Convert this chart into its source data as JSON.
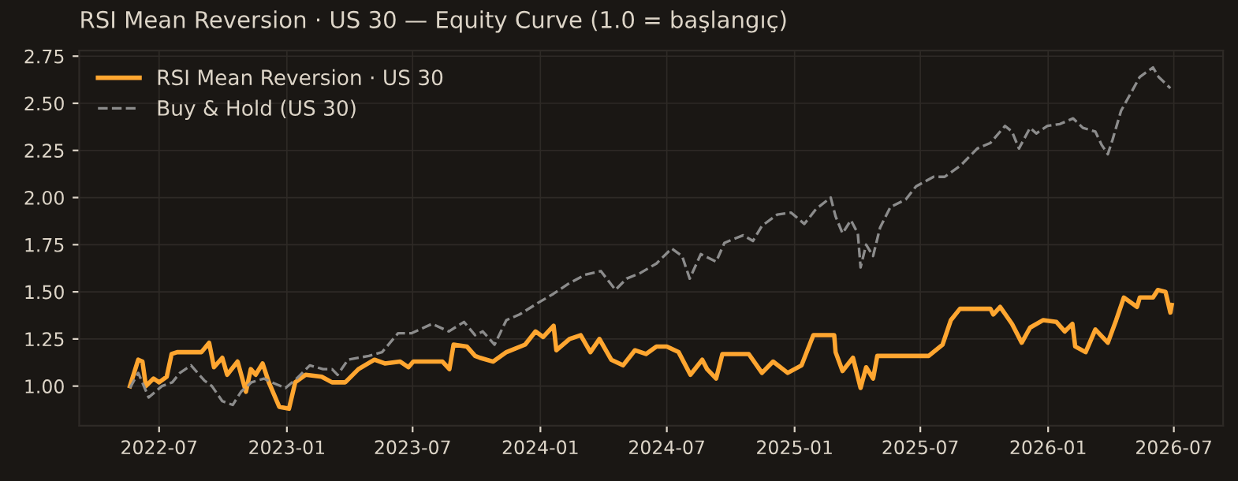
{
  "chart_data": {
    "type": "line",
    "title": "RSI Mean Reversion · US 30 — Equity Curve (1.0 = başlangıç)",
    "xlim": [
      "2022-03-08",
      "2026-09-10"
    ],
    "ylim": [
      0.79,
      2.78
    ],
    "xticks": [
      "2022-07",
      "2023-01",
      "2023-07",
      "2024-01",
      "2024-07",
      "2025-01",
      "2025-07",
      "2026-01",
      "2026-07"
    ],
    "yticks": [
      {
        "value": 1.0,
        "label": "1.00"
      },
      {
        "value": 1.25,
        "label": "1.25"
      },
      {
        "value": 1.5,
        "label": "1.50"
      },
      {
        "value": 1.75,
        "label": "1.75"
      },
      {
        "value": 2.0,
        "label": "2.00"
      },
      {
        "value": 2.25,
        "label": "2.25"
      },
      {
        "value": 2.5,
        "label": "2.50"
      },
      {
        "value": 2.75,
        "label": "2.75"
      }
    ],
    "grid": true,
    "legend": "top left",
    "series": [
      {
        "name": "RSI Mean Reversion · US 30",
        "color": "#ffa630",
        "line_style": "solid",
        "x": [
          "2022-05-20",
          "2022-06-01",
          "2022-06-07",
          "2022-06-12",
          "2022-06-23",
          "2022-07-01",
          "2022-07-12",
          "2022-07-19",
          "2022-07-27",
          "2022-08-31",
          "2022-09-11",
          "2022-09-18",
          "2022-09-30",
          "2022-10-07",
          "2022-10-22",
          "2022-11-03",
          "2022-11-10",
          "2022-11-17",
          "2022-11-27",
          "2022-12-06",
          "2022-12-21",
          "2023-01-04",
          "2023-01-13",
          "2023-01-28",
          "2023-02-20",
          "2023-03-07",
          "2023-03-26",
          "2023-04-14",
          "2023-05-07",
          "2023-05-22",
          "2023-06-13",
          "2023-06-25",
          "2023-07-02",
          "2023-08-13",
          "2023-08-23",
          "2023-08-29",
          "2023-09-17",
          "2023-09-29",
          "2023-10-06",
          "2023-10-25",
          "2023-11-13",
          "2023-12-10",
          "2023-12-25",
          "2024-01-05",
          "2024-01-20",
          "2024-01-24",
          "2024-02-12",
          "2024-02-28",
          "2024-03-13",
          "2024-03-26",
          "2024-04-12",
          "2024-04-29",
          "2024-05-16",
          "2024-06-01",
          "2024-06-16",
          "2024-07-01",
          "2024-07-18",
          "2024-08-04",
          "2024-08-21",
          "2024-08-28",
          "2024-09-10",
          "2024-09-19",
          "2024-10-27",
          "2024-11-15",
          "2024-12-01",
          "2024-12-22",
          "2025-01-11",
          "2025-01-28",
          "2025-02-27",
          "2025-03-01",
          "2025-03-11",
          "2025-03-26",
          "2025-04-06",
          "2025-04-14",
          "2025-04-24",
          "2025-04-30",
          "2025-07-13",
          "2025-08-02",
          "2025-08-14",
          "2025-08-27",
          "2025-10-10",
          "2025-10-14",
          "2025-10-24",
          "2025-11-10",
          "2025-11-24",
          "2025-12-06",
          "2025-12-25",
          "2026-01-13",
          "2026-01-25",
          "2026-02-05",
          "2026-02-09",
          "2026-02-24",
          "2026-03-10",
          "2026-03-28",
          "2026-04-09",
          "2026-04-20",
          "2026-05-09",
          "2026-05-13",
          "2026-06-01",
          "2026-06-08",
          "2026-06-19",
          "2026-06-26",
          "2026-06-28"
        ],
        "values": [
          1.0,
          1.14,
          1.13,
          1.0,
          1.04,
          1.02,
          1.05,
          1.17,
          1.18,
          1.18,
          1.23,
          1.1,
          1.15,
          1.06,
          1.13,
          0.97,
          1.09,
          1.06,
          1.12,
          1.02,
          0.89,
          0.88,
          1.02,
          1.06,
          1.05,
          1.02,
          1.02,
          1.09,
          1.14,
          1.12,
          1.13,
          1.1,
          1.13,
          1.13,
          1.09,
          1.22,
          1.21,
          1.16,
          1.15,
          1.13,
          1.18,
          1.22,
          1.29,
          1.26,
          1.32,
          1.19,
          1.25,
          1.27,
          1.18,
          1.25,
          1.14,
          1.11,
          1.19,
          1.17,
          1.21,
          1.21,
          1.18,
          1.06,
          1.14,
          1.09,
          1.04,
          1.17,
          1.17,
          1.07,
          1.13,
          1.07,
          1.11,
          1.27,
          1.27,
          1.18,
          1.08,
          1.15,
          0.99,
          1.1,
          1.04,
          1.16,
          1.16,
          1.22,
          1.35,
          1.41,
          1.41,
          1.38,
          1.42,
          1.33,
          1.23,
          1.31,
          1.35,
          1.34,
          1.29,
          1.33,
          1.21,
          1.18,
          1.3,
          1.23,
          1.35,
          1.47,
          1.42,
          1.47,
          1.47,
          1.51,
          1.5,
          1.39,
          1.43
        ]
      },
      {
        "name": "Buy & Hold (US 30)",
        "color": "#8c8c8c",
        "line_style": "dashed",
        "x": [
          "2022-05-20",
          "2022-06-01",
          "2022-06-16",
          "2022-07-05",
          "2022-07-20",
          "2022-07-31",
          "2022-08-16",
          "2022-09-04",
          "2022-09-15",
          "2022-09-30",
          "2022-10-15",
          "2022-10-27",
          "2022-11-11",
          "2022-11-29",
          "2022-12-10",
          "2022-12-30",
          "2023-01-15",
          "2023-02-03",
          "2023-02-22",
          "2023-03-07",
          "2023-03-15",
          "2023-03-30",
          "2023-04-29",
          "2023-05-18",
          "2023-06-10",
          "2023-06-29",
          "2023-07-29",
          "2023-08-22",
          "2023-09-13",
          "2023-09-29",
          "2023-10-10",
          "2023-10-27",
          "2023-11-13",
          "2023-12-02",
          "2023-12-28",
          "2024-01-20",
          "2024-02-09",
          "2024-03-05",
          "2024-03-28",
          "2024-04-18",
          "2024-05-04",
          "2024-05-24",
          "2024-06-16",
          "2024-07-08",
          "2024-07-23",
          "2024-08-03",
          "2024-08-19",
          "2024-09-10",
          "2024-09-22",
          "2024-10-19",
          "2024-11-02",
          "2024-11-15",
          "2024-12-07",
          "2024-12-27",
          "2025-01-15",
          "2025-02-01",
          "2025-02-22",
          "2025-03-01",
          "2025-03-11",
          "2025-03-23",
          "2025-04-02",
          "2025-04-06",
          "2025-04-14",
          "2025-04-24",
          "2025-05-04",
          "2025-05-19",
          "2025-06-10",
          "2025-06-25",
          "2025-07-20",
          "2025-08-05",
          "2025-08-28",
          "2025-09-21",
          "2025-10-10",
          "2025-10-31",
          "2025-11-10",
          "2025-11-20",
          "2025-12-06",
          "2025-12-15",
          "2025-12-31",
          "2026-01-18",
          "2026-02-06",
          "2026-02-20",
          "2026-03-10",
          "2026-03-19",
          "2026-03-28",
          "2026-04-04",
          "2026-04-16",
          "2026-05-01",
          "2026-05-13",
          "2026-06-01",
          "2026-06-09",
          "2026-06-26"
        ],
        "values": [
          0.99,
          1.07,
          0.94,
          1.0,
          1.02,
          1.07,
          1.11,
          1.03,
          1.0,
          0.92,
          0.9,
          0.97,
          1.02,
          1.04,
          1.02,
          0.99,
          1.04,
          1.11,
          1.09,
          1.09,
          1.06,
          1.14,
          1.16,
          1.18,
          1.28,
          1.28,
          1.33,
          1.29,
          1.34,
          1.27,
          1.29,
          1.22,
          1.35,
          1.38,
          1.44,
          1.49,
          1.54,
          1.59,
          1.61,
          1.51,
          1.57,
          1.6,
          1.65,
          1.73,
          1.69,
          1.57,
          1.7,
          1.66,
          1.76,
          1.8,
          1.77,
          1.85,
          1.91,
          1.92,
          1.86,
          1.94,
          2.0,
          1.9,
          1.81,
          1.88,
          1.81,
          1.63,
          1.75,
          1.69,
          1.84,
          1.95,
          1.99,
          2.06,
          2.11,
          2.11,
          2.17,
          2.26,
          2.29,
          2.38,
          2.35,
          2.26,
          2.37,
          2.34,
          2.38,
          2.39,
          2.42,
          2.37,
          2.35,
          2.28,
          2.23,
          2.31,
          2.46,
          2.56,
          2.64,
          2.69,
          2.64,
          2.58
        ]
      }
    ]
  }
}
